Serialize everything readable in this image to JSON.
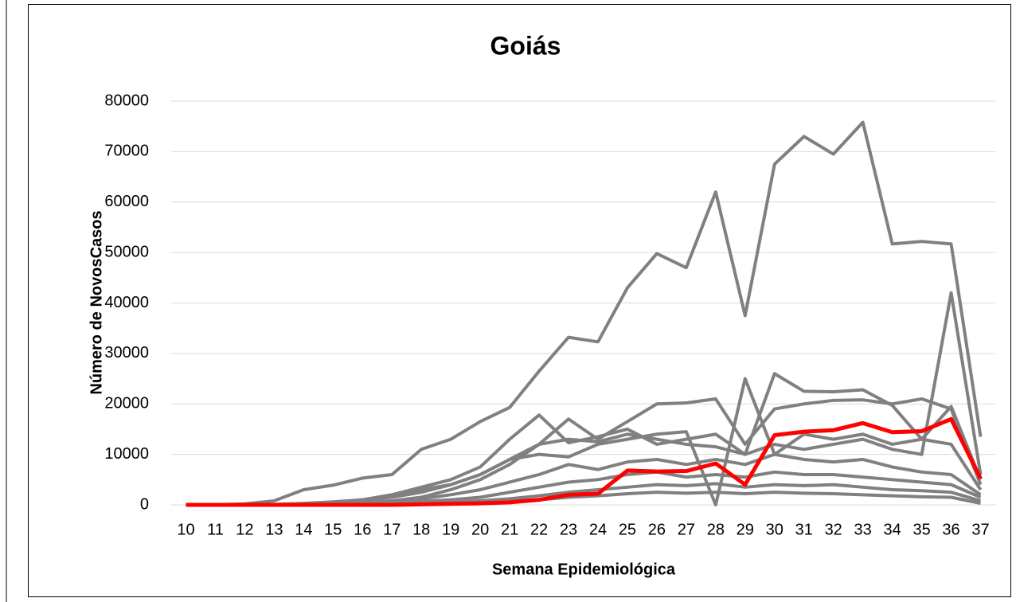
{
  "chart_data": {
    "type": "line",
    "title": "Goiás",
    "x_label": "Semana Epidemiológica",
    "y_label": "Número de NovosCasos",
    "categories": [
      "10",
      "11",
      "12",
      "13",
      "14",
      "15",
      "16",
      "17",
      "18",
      "19",
      "20",
      "21",
      "22",
      "23",
      "24",
      "25",
      "26",
      "27",
      "28",
      "29",
      "30",
      "31",
      "32",
      "33",
      "34",
      "35",
      "36",
      "37"
    ],
    "ylim": [
      0,
      80000
    ],
    "yticks": [
      0,
      10000,
      20000,
      30000,
      40000,
      50000,
      60000,
      70000,
      80000
    ],
    "grid": true,
    "series": [
      {
        "color": "#808080",
        "values": [
          0,
          0,
          200,
          800,
          3000,
          3900,
          5300,
          6000,
          11000,
          13000,
          16500,
          19300,
          26500,
          33200,
          32300,
          43000,
          49800,
          47000,
          62000,
          37500,
          67500,
          73000,
          69500,
          75800,
          51700,
          52200,
          51700,
          13500
        ]
      },
      {
        "color": "#808080",
        "values": [
          0,
          0,
          0,
          0,
          200,
          500,
          1000,
          1500,
          2500,
          4000,
          6000,
          9000,
          12000,
          13000,
          12500,
          14000,
          13000,
          12000,
          11500,
          10000,
          12000,
          11000,
          12000,
          13000,
          11000,
          10000,
          42000,
          6000
        ]
      },
      {
        "color": "#808080",
        "values": [
          0,
          0,
          0,
          100,
          300,
          600,
          1000,
          2000,
          3500,
          5000,
          7500,
          13000,
          17800,
          12300,
          13500,
          15000,
          12000,
          13000,
          14000,
          10000,
          26000,
          22500,
          22400,
          22800,
          19700,
          13000,
          19500,
          5000
        ]
      },
      {
        "color": "#808080",
        "values": [
          0,
          0,
          0,
          0,
          100,
          200,
          500,
          800,
          1500,
          3000,
          5000,
          8000,
          12000,
          17000,
          13000,
          16500,
          20000,
          20200,
          21000,
          12000,
          19000,
          20000,
          20700,
          20800,
          20000,
          21000,
          19000,
          4000
        ]
      },
      {
        "color": "#808080",
        "values": [
          0,
          0,
          0,
          0,
          200,
          500,
          1000,
          2000,
          3000,
          4000,
          6000,
          9000,
          10000,
          9500,
          12000,
          13000,
          14000,
          14500,
          0,
          25000,
          10000,
          14000,
          13000,
          14000,
          12000,
          13000,
          12000,
          3000
        ]
      },
      {
        "color": "#808080",
        "values": [
          0,
          0,
          0,
          0,
          100,
          200,
          400,
          700,
          1200,
          2000,
          3000,
          4500,
          6000,
          8000,
          7000,
          8500,
          9000,
          8000,
          9000,
          8000,
          10000,
          9000,
          8500,
          9000,
          7500,
          6500,
          6000,
          2000
        ]
      },
      {
        "color": "#808080",
        "values": [
          0,
          0,
          0,
          0,
          50,
          100,
          200,
          400,
          700,
          1000,
          1500,
          2500,
          3500,
          4500,
          5000,
          6000,
          6500,
          5500,
          6000,
          5500,
          6500,
          6000,
          6000,
          5500,
          5000,
          4500,
          4000,
          1500
        ]
      },
      {
        "color": "#808080",
        "values": [
          0,
          0,
          0,
          0,
          0,
          50,
          100,
          200,
          300,
          500,
          800,
          1200,
          1800,
          2500,
          3000,
          3500,
          4000,
          3800,
          4200,
          3500,
          4000,
          3800,
          4000,
          3500,
          3000,
          2800,
          2500,
          800
        ]
      },
      {
        "color": "#808080",
        "values": [
          0,
          0,
          0,
          0,
          0,
          0,
          50,
          100,
          150,
          300,
          500,
          800,
          1000,
          1500,
          1800,
          2200,
          2500,
          2300,
          2500,
          2200,
          2500,
          2300,
          2200,
          2000,
          1800,
          1600,
          1500,
          300
        ]
      },
      {
        "color": "#ff0000",
        "values": [
          0,
          0,
          0,
          0,
          0,
          0,
          0,
          0,
          100,
          200,
          300,
          500,
          1000,
          2000,
          2200,
          6800,
          6600,
          6700,
          8200,
          4000,
          13800,
          14500,
          14800,
          16200,
          14400,
          14600,
          17000,
          5200
        ]
      }
    ]
  }
}
